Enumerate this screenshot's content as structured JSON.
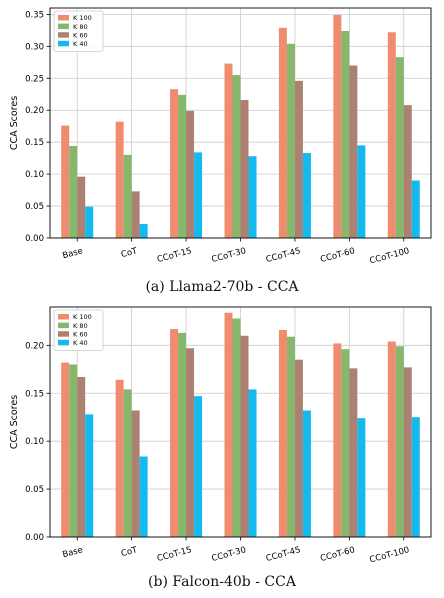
{
  "figure": {
    "captions": [
      "(a) Llama2-70b - CCA",
      "(b) Falcon-40b - CCA"
    ]
  },
  "colors": {
    "K 100": "#ef8c70",
    "K 80": "#86b76b",
    "K 60": "#ad8172",
    "K 40": "#14b9ee",
    "grid": "#cccccc",
    "axis": "#000000"
  },
  "chart_data": [
    {
      "type": "bar",
      "title": "",
      "xlabel": "",
      "ylabel": "CCA Scores",
      "categories": [
        "Base",
        "CoT",
        "CCoT-15",
        "CCoT-30",
        "CCoT-45",
        "CCoT-60",
        "CCoT-100"
      ],
      "series": [
        {
          "name": "K 100",
          "values": [
            0.176,
            0.182,
            0.233,
            0.273,
            0.329,
            0.349,
            0.322
          ]
        },
        {
          "name": "K 80",
          "values": [
            0.144,
            0.13,
            0.224,
            0.255,
            0.304,
            0.324,
            0.283
          ]
        },
        {
          "name": "K 60",
          "values": [
            0.096,
            0.073,
            0.199,
            0.216,
            0.246,
            0.27,
            0.208
          ]
        },
        {
          "name": "K 40",
          "values": [
            0.049,
            0.022,
            0.134,
            0.128,
            0.133,
            0.145,
            0.09
          ]
        }
      ],
      "ylim": [
        0,
        0.36
      ],
      "yticks": [
        0.0,
        0.05,
        0.1,
        0.15,
        0.2,
        0.25,
        0.3,
        0.35
      ],
      "ytick_labels": [
        "0.00",
        "0.05",
        "0.10",
        "0.15",
        "0.20",
        "0.25",
        "0.30",
        "0.35"
      ],
      "grid": true,
      "legend": "top-left"
    },
    {
      "type": "bar",
      "title": "",
      "xlabel": "",
      "ylabel": "CCA Scores",
      "categories": [
        "Base",
        "CoT",
        "CCoT-15",
        "CCoT-30",
        "CCoT-45",
        "CCoT-60",
        "CCoT-100"
      ],
      "series": [
        {
          "name": "K 100",
          "values": [
            0.182,
            0.164,
            0.217,
            0.234,
            0.216,
            0.202,
            0.204
          ]
        },
        {
          "name": "K 80",
          "values": [
            0.18,
            0.154,
            0.213,
            0.228,
            0.209,
            0.196,
            0.199
          ]
        },
        {
          "name": "K 60",
          "values": [
            0.167,
            0.132,
            0.197,
            0.21,
            0.185,
            0.176,
            0.177
          ]
        },
        {
          "name": "K 40",
          "values": [
            0.128,
            0.084,
            0.147,
            0.154,
            0.132,
            0.124,
            0.125
          ]
        }
      ],
      "ylim": [
        0,
        0.24
      ],
      "yticks": [
        0.0,
        0.05,
        0.1,
        0.15,
        0.2
      ],
      "ytick_labels": [
        "0.00",
        "0.05",
        "0.10",
        "0.15",
        "0.20"
      ],
      "grid": true,
      "legend": "top-left"
    }
  ]
}
